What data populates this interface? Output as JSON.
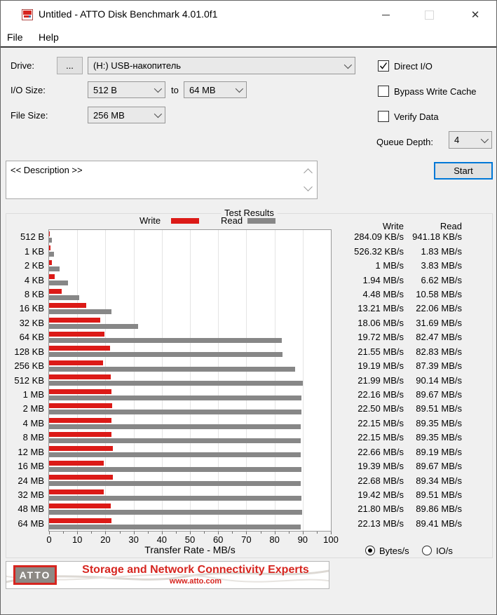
{
  "window": {
    "title": "Untitled - ATTO Disk Benchmark 4.01.0f1"
  },
  "menu": {
    "file": "File",
    "help": "Help"
  },
  "controls": {
    "drive_label": "Drive:",
    "browse_label": "...",
    "drive_value": "(H:) USB-накопитель",
    "io_size_label": "I/O Size:",
    "io_size_from": "512 B",
    "to_label": "to",
    "io_size_to": "64 MB",
    "file_size_label": "File Size:",
    "file_size_value": "256 MB",
    "direct_io_label": "Direct I/O",
    "bypass_write_cache_label": "Bypass Write Cache",
    "verify_data_label": "Verify Data",
    "queue_depth_label": "Queue Depth:",
    "queue_depth_value": "4",
    "description_value": "<< Description >>",
    "start_label": "Start"
  },
  "results": {
    "group_title": "Test Results",
    "legend_write": "Write",
    "legend_read": "Read",
    "col_write": "Write",
    "col_read": "Read",
    "radio_bytes": "Bytes/s",
    "radio_io": "IO/s",
    "radio_selected": "Bytes/s"
  },
  "chart_data": {
    "type": "bar",
    "orientation": "horizontal",
    "title": "Test Results",
    "xlabel": "Transfer Rate - MB/s",
    "xlim": [
      0,
      100
    ],
    "xticks": [
      0,
      10,
      20,
      30,
      40,
      50,
      60,
      70,
      80,
      90,
      100
    ],
    "grid": true,
    "categories": [
      "512 B",
      "1 KB",
      "2 KB",
      "4 KB",
      "8 KB",
      "16 KB",
      "32 KB",
      "64 KB",
      "128 KB",
      "256 KB",
      "512 KB",
      "1 MB",
      "2 MB",
      "4 MB",
      "8 MB",
      "12 MB",
      "16 MB",
      "24 MB",
      "32 MB",
      "48 MB",
      "64 MB"
    ],
    "series": [
      {
        "name": "Write",
        "color": "#dc1a17",
        "values_mbps": [
          0.28,
          0.51,
          1.0,
          1.94,
          4.48,
          13.21,
          18.06,
          19.72,
          21.55,
          19.19,
          21.99,
          22.16,
          22.5,
          22.15,
          22.15,
          22.66,
          19.39,
          22.68,
          19.42,
          21.8,
          22.13
        ],
        "labels": [
          "284.09 KB/s",
          "526.32 KB/s",
          "1 MB/s",
          "1.94 MB/s",
          "4.48 MB/s",
          "13.21 MB/s",
          "18.06 MB/s",
          "19.72 MB/s",
          "21.55 MB/s",
          "19.19 MB/s",
          "21.99 MB/s",
          "22.16 MB/s",
          "22.50 MB/s",
          "22.15 MB/s",
          "22.15 MB/s",
          "22.66 MB/s",
          "19.39 MB/s",
          "22.68 MB/s",
          "19.42 MB/s",
          "21.80 MB/s",
          "22.13 MB/s"
        ]
      },
      {
        "name": "Read",
        "color": "#878787",
        "values_mbps": [
          0.92,
          1.83,
          3.83,
          6.62,
          10.58,
          22.06,
          31.69,
          82.47,
          82.83,
          87.39,
          90.14,
          89.67,
          89.51,
          89.35,
          89.35,
          89.19,
          89.67,
          89.34,
          89.51,
          89.86,
          89.41
        ],
        "labels": [
          "941.18 KB/s",
          "1.83 MB/s",
          "3.83 MB/s",
          "6.62 MB/s",
          "10.58 MB/s",
          "22.06 MB/s",
          "31.69 MB/s",
          "82.47 MB/s",
          "82.83 MB/s",
          "87.39 MB/s",
          "90.14 MB/s",
          "89.67 MB/s",
          "89.51 MB/s",
          "89.35 MB/s",
          "89.35 MB/s",
          "89.19 MB/s",
          "89.67 MB/s",
          "89.34 MB/s",
          "89.51 MB/s",
          "89.86 MB/s",
          "89.41 MB/s"
        ]
      }
    ]
  },
  "banner": {
    "logo": "ATTO",
    "headline": "Storage and Network Connectivity Experts",
    "url": "www.atto.com"
  },
  "colors": {
    "write": "#dc1a17",
    "read": "#878787",
    "accent_blue": "#0078d7",
    "banner_red": "#d6251f",
    "window_bg": "#f0f0f0"
  }
}
